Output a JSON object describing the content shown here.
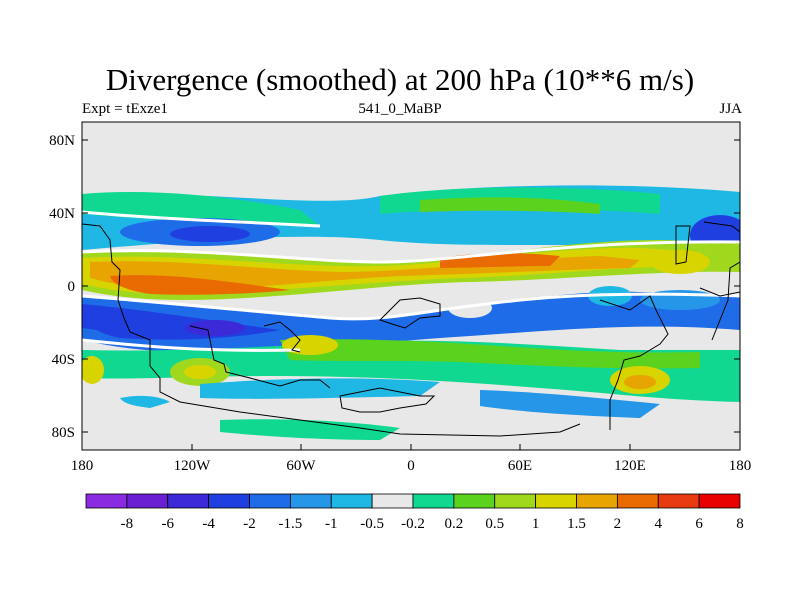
{
  "title": "Divergence (smoothed) at 200 hPa (10**6 m/s)",
  "subtitle_left": "Expt = tExze1",
  "subtitle_center": "541_0_MaBP",
  "subtitle_right": "JJA",
  "x_ticks": [
    "180",
    "120W",
    "60W",
    "0",
    "60E",
    "120E",
    "180"
  ],
  "y_ticks": [
    "80N",
    "40N",
    "0",
    "40S",
    "80S"
  ],
  "colorbar": {
    "colors": [
      "#8a2be2",
      "#6a1fd0",
      "#3c2ad8",
      "#1f3fe0",
      "#1f6ce8",
      "#2596e8",
      "#1fb8e4",
      "#e8e8e8",
      "#10d890",
      "#5ad21e",
      "#a0d81e",
      "#d8d400",
      "#e8a400",
      "#e86a00",
      "#e83a10",
      "#e80000"
    ],
    "labels": [
      "-8",
      "-6",
      "-4",
      "-2",
      "-1.5",
      "-1",
      "-0.5",
      "-0.2",
      "0.2",
      "0.5",
      "1",
      "1.5",
      "2",
      "4",
      "6",
      "8"
    ]
  },
  "colors": {
    "background": "#e8e8e8",
    "ocean_no_data": "#e6e6e6"
  }
}
